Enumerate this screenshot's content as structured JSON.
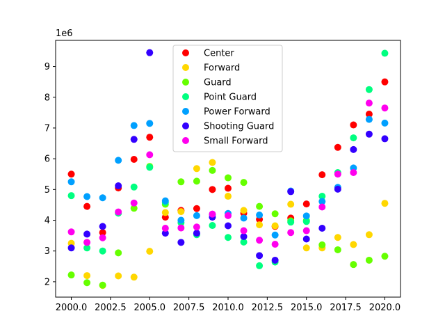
{
  "chart_data": {
    "type": "scatter",
    "title": "",
    "xlabel": "",
    "ylabel": "",
    "y_multiplier_label": "1e6",
    "xlim": [
      1999.0,
      2021.0
    ],
    "ylim": [
      1500000,
      9850000
    ],
    "xticks": [
      2000.0,
      2002.5,
      2005.0,
      2007.5,
      2010.0,
      2012.5,
      2015.0,
      2017.5,
      2020.0
    ],
    "xtick_labels": [
      "2000.0",
      "2002.5",
      "2005.0",
      "2007.5",
      "2010.0",
      "2012.5",
      "2015.0",
      "2017.5",
      "2020.0"
    ],
    "yticks": [
      2000000,
      3000000,
      4000000,
      5000000,
      6000000,
      7000000,
      8000000,
      9000000
    ],
    "ytick_labels": [
      "2",
      "3",
      "4",
      "5",
      "6",
      "7",
      "8",
      "9"
    ],
    "grid": false,
    "legend_position": "upper-center",
    "series": [
      {
        "name": "Center",
        "color": "#ff0000",
        "x": [
          2000,
          2001,
          2002,
          2003,
          2004,
          2005,
          2006,
          2007,
          2008,
          2009,
          2010,
          2011,
          2012,
          2013,
          2014,
          2015,
          2016,
          2017,
          2018,
          2019,
          2020
        ],
        "y": [
          5500000,
          4450000,
          3600000,
          5050000,
          5980000,
          6700000,
          4100000,
          4320000,
          4380000,
          5000000,
          5040000,
          4230000,
          4030000,
          3800000,
          4070000,
          4530000,
          5480000,
          6370000,
          7100000,
          7450000,
          8500000
        ]
      },
      {
        "name": "Forward",
        "color": "#ffd700",
        "x": [
          2000,
          2001,
          2002,
          2003,
          2004,
          2005,
          2006,
          2007,
          2008,
          2009,
          2010,
          2011,
          2012,
          2013,
          2014,
          2015,
          2016,
          2017,
          2018,
          2019,
          2020
        ],
        "y": [
          3250000,
          2200000,
          1880000,
          2190000,
          2150000,
          2990000,
          4250000,
          4280000,
          5680000,
          5880000,
          4780000,
          4320000,
          3850000,
          3820000,
          4520000,
          3100000,
          3100000,
          3440000,
          3210000,
          3530000,
          4550000
        ]
      },
      {
        "name": "Guard",
        "color": "#66ff00",
        "x": [
          2000,
          2001,
          2002,
          2003,
          2004,
          2005,
          2006,
          2007,
          2008,
          2009,
          2010,
          2011,
          2012,
          2013,
          2014,
          2015,
          2016,
          2017,
          2018,
          2019,
          2020
        ],
        "y": [
          2220000,
          1970000,
          1890000,
          2940000,
          4390000,
          5750000,
          4520000,
          5250000,
          5270000,
          5620000,
          5380000,
          5230000,
          4450000,
          4210000,
          3980000,
          3990000,
          3200000,
          3040000,
          2560000,
          2700000,
          2830000
        ]
      },
      {
        "name": "Point Guard",
        "color": "#00ff80",
        "x": [
          2000,
          2001,
          2002,
          2003,
          2004,
          2005,
          2006,
          2007,
          2008,
          2009,
          2010,
          2011,
          2012,
          2013,
          2014,
          2015,
          2016,
          2017,
          2018,
          2019,
          2020
        ],
        "y": [
          4800000,
          3100000,
          3000000,
          4230000,
          5080000,
          5720000,
          4580000,
          3920000,
          3530000,
          3830000,
          3440000,
          3290000,
          2520000,
          2640000,
          3940000,
          3960000,
          4780000,
          5550000,
          6680000,
          8250000,
          9430000
        ]
      },
      {
        "name": "Power Forward",
        "color": "#00a0ff",
        "x": [
          2000,
          2001,
          2002,
          2003,
          2004,
          2005,
          2006,
          2007,
          2008,
          2009,
          2010,
          2011,
          2012,
          2013,
          2014,
          2015,
          2016,
          2017,
          2018,
          2019,
          2020
        ],
        "y": [
          5250000,
          4770000,
          4730000,
          5950000,
          7080000,
          7150000,
          4630000,
          4000000,
          4150000,
          4180000,
          4220000,
          4070000,
          4170000,
          3520000,
          4950000,
          4140000,
          4610000,
          5070000,
          5700000,
          7280000,
          7160000
        ]
      },
      {
        "name": "Shooting Guard",
        "color": "#3300ff",
        "x": [
          2000,
          2001,
          2002,
          2003,
          2004,
          2005,
          2006,
          2007,
          2008,
          2009,
          2010,
          2011,
          2012,
          2013,
          2014,
          2015,
          2016,
          2017,
          2018,
          2019,
          2020
        ],
        "y": [
          3100000,
          3550000,
          3800000,
          5120000,
          6630000,
          9450000,
          3580000,
          3280000,
          3580000,
          4100000,
          3820000,
          3470000,
          2850000,
          2700000,
          4930000,
          3390000,
          3740000,
          5010000,
          6300000,
          6800000,
          6650000
        ]
      },
      {
        "name": "Small Forward",
        "color": "#ff00ee",
        "x": [
          2000,
          2001,
          2002,
          2003,
          2004,
          2005,
          2006,
          2007,
          2008,
          2009,
          2010,
          2011,
          2012,
          2013,
          2014,
          2015,
          2016,
          2017,
          2018,
          2019,
          2020
        ],
        "y": [
          3620000,
          3280000,
          3430000,
          4270000,
          4560000,
          6130000,
          3740000,
          3750000,
          3780000,
          4200000,
          4150000,
          3660000,
          3350000,
          3220000,
          3600000,
          3660000,
          4430000,
          5500000,
          5550000,
          7810000,
          7650000
        ]
      }
    ]
  }
}
